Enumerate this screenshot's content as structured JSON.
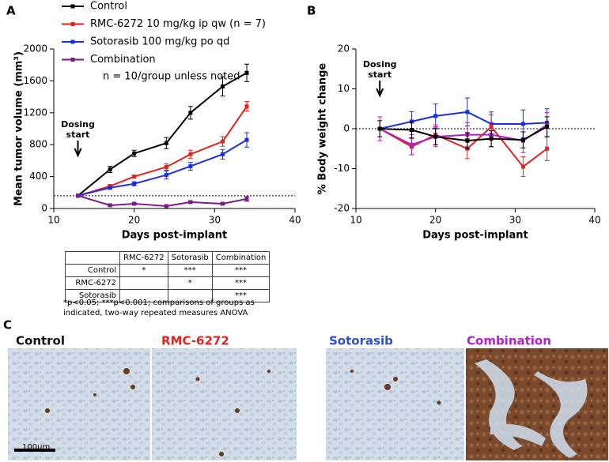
{
  "panels": [
    "A",
    "B",
    "C"
  ],
  "chart_data": [
    {
      "type": "line",
      "x_label": "Days post-implant",
      "y_label": "Mean tumor volume (mm³)",
      "xlim": [
        10,
        40
      ],
      "xticks": [
        10,
        20,
        30,
        40
      ],
      "ylim": [
        0,
        2000
      ],
      "yticks": [
        0,
        400,
        800,
        1200,
        1600,
        2000
      ],
      "hline": 160,
      "legend": "above",
      "note": "n = 10/group unless noted",
      "annotation": {
        "lines": [
          "Dosing",
          "start"
        ],
        "x": 13
      },
      "x": [
        13,
        17,
        20,
        24,
        27,
        31,
        34
      ],
      "series": [
        {
          "name": "Control",
          "color": "#000000",
          "values": [
            160,
            490,
            690,
            820,
            1200,
            1530,
            1700
          ],
          "errors": [
            0,
            40,
            40,
            70,
            80,
            120,
            110
          ]
        },
        {
          "name": "RMC-6272 10 mg/kg ip qw (n = 7)",
          "color": "#e8211d",
          "values": [
            160,
            280,
            400,
            520,
            680,
            840,
            1280
          ],
          "errors": [
            0,
            20,
            20,
            40,
            50,
            60,
            60
          ]
        },
        {
          "name": "Sotorasib 100 mg/kg po qd",
          "color": "#1a2ee8",
          "values": [
            160,
            260,
            310,
            420,
            530,
            680,
            860
          ],
          "errors": [
            0,
            20,
            25,
            50,
            50,
            60,
            90
          ]
        },
        {
          "name": "Combination",
          "color": "#7b1a8c",
          "values": [
            160,
            40,
            60,
            30,
            80,
            60,
            120
          ],
          "errors": [
            0,
            5,
            10,
            5,
            10,
            10,
            30
          ]
        }
      ]
    },
    {
      "type": "line",
      "x_label": "Days post-implant",
      "y_label": "% Body weight change",
      "xlim": [
        10,
        40
      ],
      "xticks": [
        10,
        20,
        30,
        40
      ],
      "ylim": [
        -20,
        20
      ],
      "yticks": [
        -20,
        -10,
        0,
        10,
        20
      ],
      "hline": 0,
      "annotation": {
        "lines": [
          "Dosing",
          "start"
        ],
        "x": 13
      },
      "x": [
        13,
        17,
        20,
        24,
        27,
        31,
        34
      ],
      "series": [
        {
          "color": "#1a2ee8",
          "values": [
            0,
            1.8,
            3.2,
            4.2,
            1.2,
            1.2,
            1.5
          ],
          "errors": [
            0,
            2.5,
            3,
            3.5,
            3,
            3.5,
            3.5
          ]
        },
        {
          "color": "#e8211d",
          "values": [
            0,
            -4.5,
            -1.5,
            -5,
            0.5,
            -9.5,
            -5
          ],
          "errors": [
            0,
            2,
            2.5,
            2.5,
            3,
            2.5,
            3
          ]
        },
        {
          "color": "#b020c0",
          "values": [
            0,
            -4,
            -2,
            -1.5,
            -1.5,
            -3,
            1
          ],
          "errors": [
            3,
            2.5,
            2.5,
            3,
            3,
            3,
            3
          ]
        },
        {
          "color": "#000000",
          "values": [
            0,
            -0.3,
            -2,
            -3,
            -2.5,
            -2.8,
            0.5
          ],
          "errors": [
            2,
            2,
            2,
            2,
            2,
            2,
            2.5
          ]
        }
      ]
    }
  ],
  "table": {
    "columns": [
      "RMC-6272",
      "Sotorasib",
      "Combination"
    ],
    "rows": [
      {
        "label": "Control",
        "cells": [
          "*",
          "***",
          "***"
        ]
      },
      {
        "label": "RMC-6272",
        "cells": [
          null,
          "*",
          "***"
        ]
      },
      {
        "label": "Sotorasib",
        "cells": [
          null,
          null,
          "***"
        ]
      }
    ],
    "footnote": "*p<0.05; ***p<0.001; comparisons of groups as indicated, two-way repeated measures ANOVA"
  },
  "panel_c": {
    "labels": [
      {
        "text": "Control",
        "color": "#111111"
      },
      {
        "text": "RMC-6272",
        "color": "#e8211d"
      },
      {
        "text": "Sotorasib",
        "color": "#2a4fd8"
      },
      {
        "text": "Combination",
        "color": "#b020d0"
      }
    ],
    "scale_bar": "100µm"
  }
}
